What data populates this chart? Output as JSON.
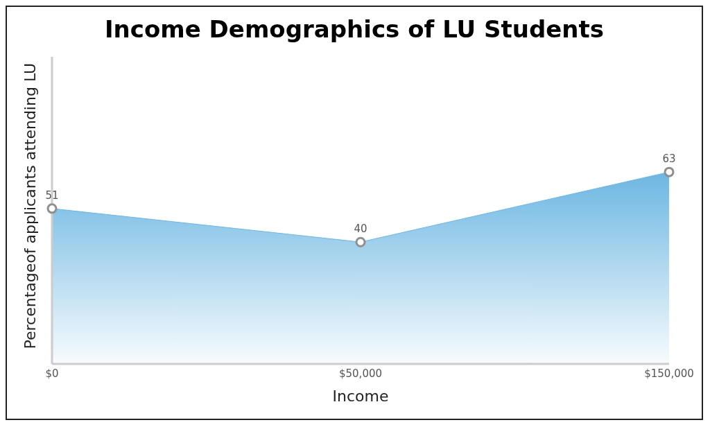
{
  "chart_data": {
    "type": "area",
    "title": "Income Demographics of LU Students",
    "xlabel": "Income",
    "ylabel": "Percentageof applicants attending LU",
    "categories": [
      "$0",
      "$50,000",
      "$150,000"
    ],
    "series": [
      {
        "color": "#6cb6e2",
        "values": [
          51,
          40,
          63
        ]
      }
    ],
    "data_labels": true,
    "marker": "circle",
    "grid": false,
    "legend": false
  }
}
